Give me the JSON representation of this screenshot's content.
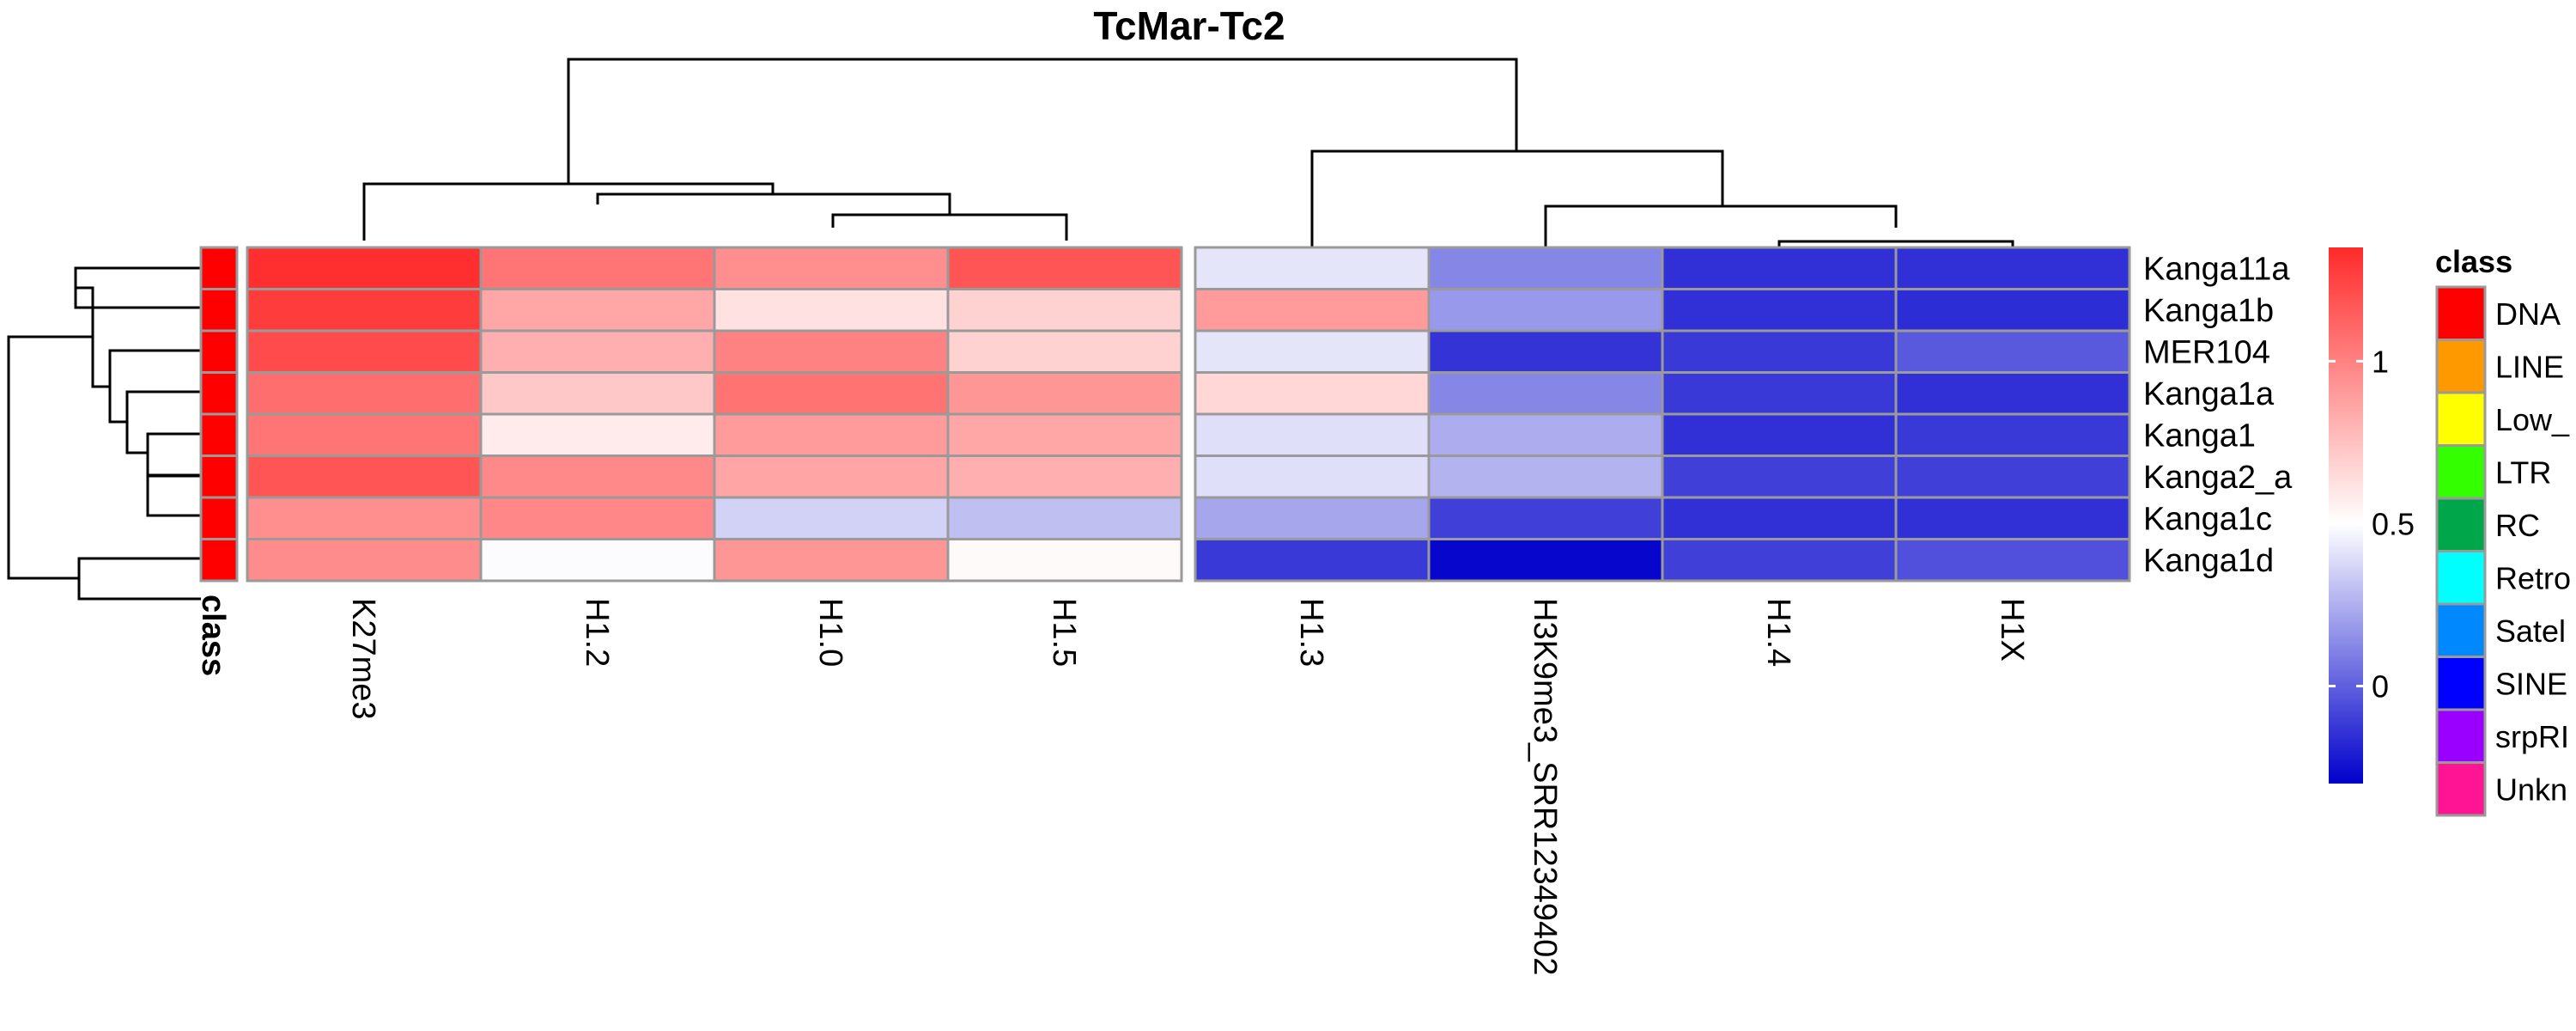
{
  "chart_data": {
    "type": "heatmap",
    "title": "TcMar-Tc2",
    "columns": [
      "K27me3",
      "H1.2",
      "H1.0",
      "H1.5",
      "H1.3",
      "H3K9me3_SRR12349402",
      "H1.4",
      "H1X"
    ],
    "rows": [
      "Kanga11a",
      "Kanga1b",
      "MER104",
      "Kanga1a",
      "Kanga1",
      "Kanga2_a",
      "Kanga1c",
      "Kanga1d"
    ],
    "values": [
      [
        1.33,
        1.05,
        0.95,
        1.18,
        0.42,
        0.12,
        -0.15,
        -0.15
      ],
      [
        1.28,
        0.85,
        0.62,
        0.68,
        0.9,
        0.18,
        -0.15,
        -0.16
      ],
      [
        1.22,
        0.82,
        1.0,
        0.68,
        0.42,
        -0.14,
        -0.12,
        -0.02
      ],
      [
        1.08,
        0.72,
        1.06,
        0.92,
        0.66,
        0.12,
        -0.12,
        -0.15
      ],
      [
        1.05,
        0.58,
        0.9,
        0.85,
        0.4,
        0.24,
        -0.15,
        -0.12
      ],
      [
        1.18,
        0.97,
        0.86,
        0.82,
        0.4,
        0.26,
        -0.1,
        -0.1
      ],
      [
        0.95,
        0.98,
        0.36,
        0.3,
        0.22,
        -0.1,
        -0.15,
        -0.15
      ],
      [
        0.96,
        0.49,
        0.92,
        0.52,
        -0.12,
        -0.28,
        -0.1,
        -0.05
      ]
    ],
    "row_annotation": {
      "name": "class",
      "values": [
        "DNA",
        "DNA",
        "DNA",
        "DNA",
        "DNA",
        "DNA",
        "DNA",
        "DNA"
      ]
    },
    "color_scale": {
      "min": -0.3,
      "mid": 0.5,
      "max": 1.35,
      "low_color": "#0000cc",
      "mid_color": "#ffffff",
      "high_color": "#ff2a2a",
      "ticks": [
        "0",
        "0.5",
        "1"
      ]
    },
    "legend": {
      "title": "class",
      "entries": [
        {
          "label": "DNA",
          "color": "#ff0000"
        },
        {
          "label": "LINE",
          "color": "#ff9900"
        },
        {
          "label": "Low_",
          "color": "#ffff00"
        },
        {
          "label": "LTR",
          "color": "#33ff00"
        },
        {
          "label": "RC",
          "color": "#00a64a"
        },
        {
          "label": "Retro",
          "color": "#00ffff"
        },
        {
          "label": "Satel",
          "color": "#0088ff"
        },
        {
          "label": "SINE",
          "color": "#0000ff"
        },
        {
          "label": "srpRI",
          "color": "#9900ff"
        },
        {
          "label": "Unkn",
          "color": "#ff1493"
        }
      ]
    }
  }
}
